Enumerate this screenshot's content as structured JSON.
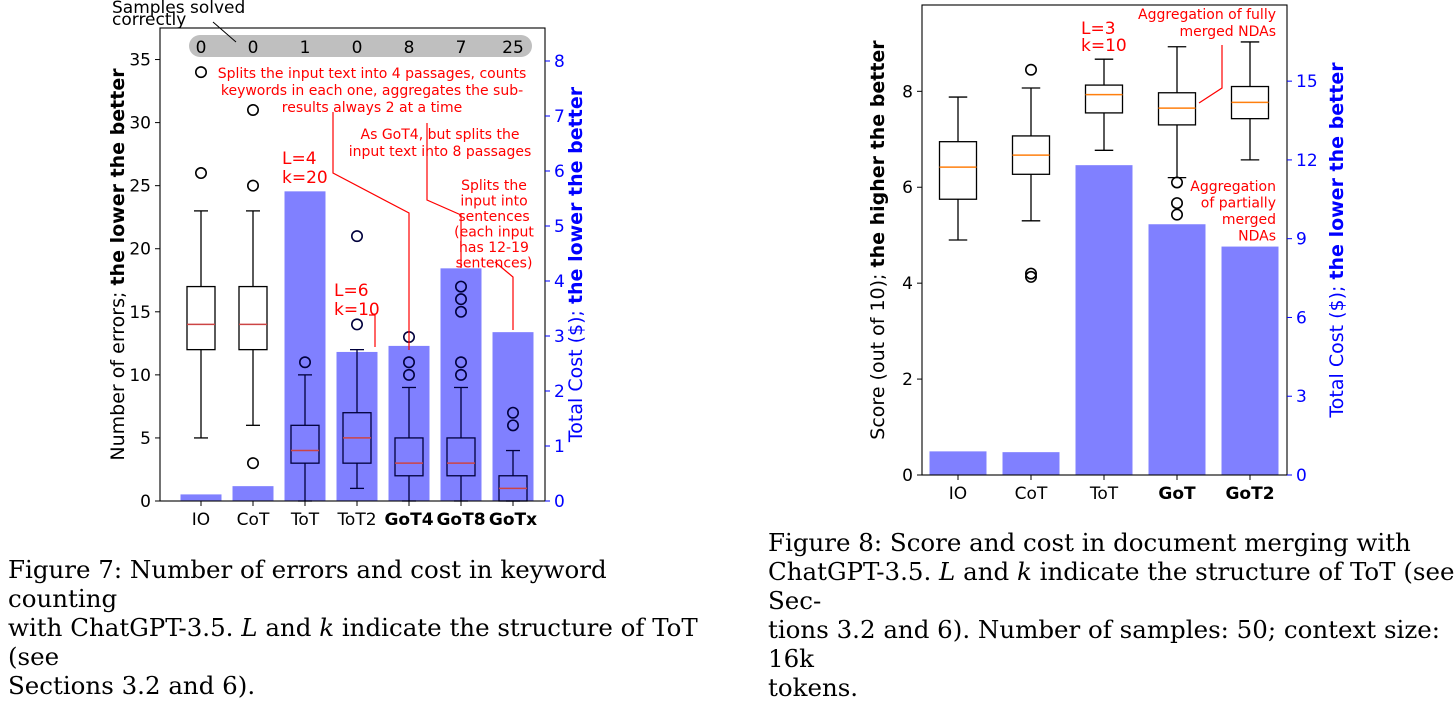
{
  "chart_data": [
    {
      "type": "box+bar",
      "categories": [
        "IO",
        "CoT",
        "ToT",
        "ToT2",
        "GoT4",
        "GoT8",
        "GoTx"
      ],
      "bold_categories": [
        "GoT4",
        "GoT8",
        "GoTx"
      ],
      "ylabel_left_prefix": "Number of errors; ",
      "ylabel_left_bold": "the lower the better",
      "ylabel_right_prefix": "Total Cost ($); ",
      "ylabel_right_bold": "the lower the better",
      "ylim_left": [
        0,
        37.5
      ],
      "yticks_left": [
        0,
        5,
        10,
        15,
        20,
        25,
        30,
        35
      ],
      "ylim_right": [
        0,
        8.6
      ],
      "yticks_right": [
        0,
        1,
        2,
        3,
        4,
        5,
        6,
        7,
        8
      ],
      "cost": [
        0.12,
        0.27,
        5.63,
        2.71,
        2.82,
        4.23,
        3.07
      ],
      "boxes": [
        {
          "whislo": 5,
          "q1": 12,
          "med": 14,
          "q3": 17,
          "whishi": 23,
          "fliers": [
            26,
            34
          ]
        },
        {
          "whislo": 6,
          "q1": 12,
          "med": 14,
          "q3": 17,
          "whishi": 23,
          "fliers": [
            3,
            25,
            31
          ]
        },
        {
          "whislo": 0,
          "q1": 3,
          "med": 4,
          "q3": 6,
          "whishi": 10,
          "fliers": [
            11
          ]
        },
        {
          "whislo": 1,
          "q1": 3,
          "med": 5,
          "q3": 7,
          "whishi": 12,
          "fliers": [
            14,
            21
          ]
        },
        {
          "whislo": 0,
          "q1": 2,
          "med": 3,
          "q3": 5,
          "whishi": 9,
          "fliers": [
            10,
            11,
            13
          ]
        },
        {
          "whislo": 0,
          "q1": 2,
          "med": 3,
          "q3": 5,
          "whishi": 9,
          "fliers": [
            10,
            11,
            15,
            16,
            17
          ]
        },
        {
          "whislo": 0,
          "q1": 0,
          "med": 1,
          "q3": 2,
          "whishi": 4,
          "fliers": [
            6,
            7
          ]
        }
      ],
      "samples_label": "Samples solved correctly",
      "samples_label_lines": [
        "Samples solved",
        "correctly"
      ],
      "samples_solved": [
        "0",
        "0",
        "1",
        "0",
        "8",
        "7",
        "25"
      ],
      "tot_lk": [
        {
          "category": "ToT",
          "lines": [
            "L=4",
            "k=20"
          ]
        },
        {
          "category": "ToT2",
          "lines": [
            "L=6",
            "k=10"
          ]
        }
      ],
      "annotations": [
        {
          "target": "GoT4",
          "lines": [
            "Splits the input text into 4 passages, counts",
            "keywords in each one, aggregates the sub-",
            "results always 2 at a time"
          ]
        },
        {
          "target": "GoT8",
          "lines": [
            "As GoT4, but splits the",
            "input text into 8 passages"
          ]
        },
        {
          "target": "GoTx",
          "lines": [
            "Splits the",
            "input into",
            "sentences",
            "(each input",
            "has 12-19",
            "sentences)"
          ]
        }
      ]
    },
    {
      "type": "box+bar",
      "categories": [
        "IO",
        "CoT",
        "ToT",
        "GoT",
        "GoT2"
      ],
      "bold_categories": [
        "GoT",
        "GoT2"
      ],
      "ylabel_left_prefix": "Score (out of 10); ",
      "ylabel_left_bold": "the higher the better",
      "ylabel_right_prefix": "Total Cost ($); ",
      "ylabel_right_bold": "the lower the better",
      "ylim_left": [
        0,
        9.8
      ],
      "yticks_left": [
        0,
        2,
        4,
        6,
        8
      ],
      "ylim_right": [
        0,
        17.9
      ],
      "yticks_right": [
        0,
        3,
        6,
        9,
        12,
        15
      ],
      "cost": [
        0.9,
        0.87,
        11.8,
        9.55,
        8.7
      ],
      "boxes": [
        {
          "whislo": 4.9,
          "q1": 5.75,
          "med": 6.42,
          "q3": 6.95,
          "whishi": 7.88,
          "fliers": []
        },
        {
          "whislo": 5.3,
          "q1": 6.27,
          "med": 6.67,
          "q3": 7.07,
          "whishi": 8.07,
          "fliers": [
            4.13,
            4.2,
            8.45
          ]
        },
        {
          "whislo": 6.77,
          "q1": 7.55,
          "med": 7.93,
          "q3": 8.13,
          "whishi": 8.67,
          "fliers": []
        },
        {
          "whislo": 6.2,
          "q1": 7.3,
          "med": 7.65,
          "q3": 7.97,
          "whishi": 8.93,
          "fliers": [
            5.43,
            5.67,
            6.1
          ]
        },
        {
          "whislo": 6.57,
          "q1": 7.43,
          "med": 7.77,
          "q3": 8.1,
          "whishi": 9.03,
          "fliers": []
        }
      ],
      "tot_lk": [
        {
          "category": "ToT",
          "lines": [
            "L=3",
            "k=10"
          ]
        }
      ],
      "annotations": [
        {
          "target": "GoT",
          "lines": [
            "Aggregation of fully",
            "merged NDAs"
          ]
        },
        {
          "target": "GoT",
          "lines": [
            "Aggregation",
            "of partially",
            "merged",
            "NDAs"
          ]
        }
      ]
    }
  ],
  "captions": [
    {
      "figure": "Figure 7: Number of errors and cost in keyword counting",
      "line2_pre": "with ChatGPT-3.5. ",
      "L": "L",
      "and": " and ",
      "k": "k",
      "line2_post": " indicate the structure of ToT (see",
      "line3": "Sections 3.2 and 6)."
    },
    {
      "figure": "Figure 8: Score and cost in document merging with",
      "line2_pre": "ChatGPT-3.5. ",
      "L": "L",
      "and": " and ",
      "k": "k",
      "line2_post": " indicate the structure of ToT (see Sec-",
      "line3": "tions 3.2 and 6). Number of samples: 50; context size: 16k",
      "line4": "tokens."
    }
  ],
  "colors": {
    "bar": "#8080ff",
    "median_box1": "#cc4444",
    "median_out": "#ff7f0e",
    "right_axis": "#0000ff",
    "annotation": "#ff0000",
    "samples_band": "#bfbfbf",
    "box_on_bar": "#00003c"
  }
}
